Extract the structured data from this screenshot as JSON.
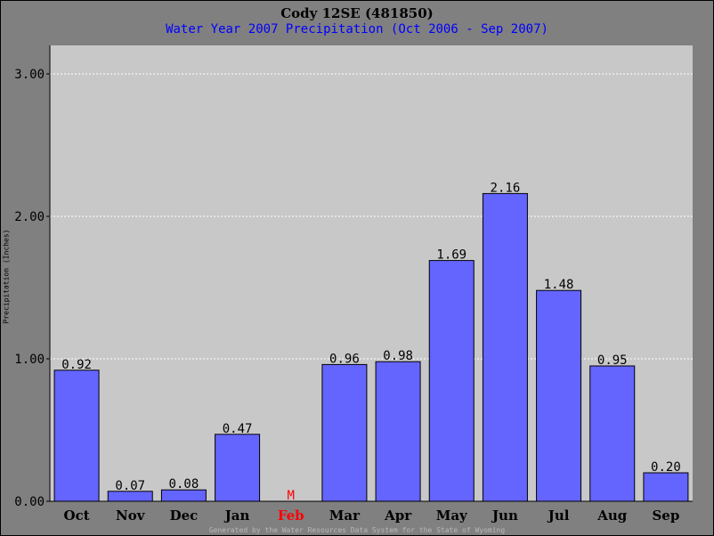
{
  "header": {
    "title": "Cody 12SE (481850)",
    "subtitle": "Water Year 2007 Precipitation (Oct 2006 - Sep 2007)"
  },
  "footer": {
    "text": "Generated by the Water Resources Data System for the State of Wyoming"
  },
  "colors": {
    "plot_background": "#c8c8c8",
    "bar_fill": "#6464ff",
    "missing_label": "#ff0000",
    "subtitle": "#0000ff"
  },
  "chart_data": {
    "type": "bar",
    "title": "Cody 12SE (481850)",
    "subtitle": "Water Year 2007 Precipitation (Oct 2006 - Sep 2007)",
    "xlabel": "",
    "ylabel": "Precipitation (Inches)",
    "ylim": [
      0,
      3.2
    ],
    "yticks": [
      "0.00",
      "1.00",
      "2.00",
      "3.00"
    ],
    "grid": true,
    "categories": [
      "Oct",
      "Nov",
      "Dec",
      "Jan",
      "Feb",
      "Mar",
      "Apr",
      "May",
      "Jun",
      "Jul",
      "Aug",
      "Sep"
    ],
    "values": [
      0.92,
      0.07,
      0.08,
      0.47,
      null,
      0.96,
      0.98,
      1.69,
      2.16,
      1.48,
      0.95,
      0.2
    ],
    "data_labels": [
      "0.92",
      "0.07",
      "0.08",
      "0.47",
      "M",
      "0.96",
      "0.98",
      "1.69",
      "2.16",
      "1.48",
      "0.95",
      "0.20"
    ],
    "missing_categories": [
      "Feb"
    ]
  }
}
